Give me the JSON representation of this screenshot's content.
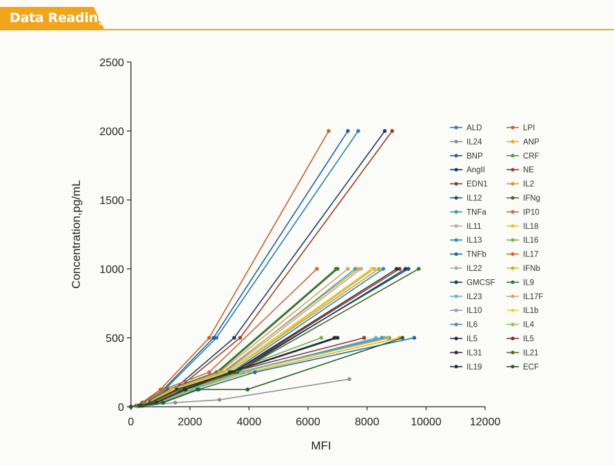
{
  "header": {
    "title": "Data Reading"
  },
  "colors": {
    "accent": "#f0a51c"
  },
  "chart_data": {
    "type": "line",
    "title": "",
    "xlabel": "MFI",
    "ylabel": "Concentration,pg/mL",
    "xlim": [
      0,
      12000
    ],
    "ylim": [
      0,
      2500
    ],
    "xticks": [
      0,
      2000,
      4000,
      6000,
      8000,
      10000,
      12000
    ],
    "yticks": [
      0,
      500,
      1000,
      1500,
      2000,
      2500
    ],
    "legend_position": "right",
    "series": [
      {
        "name": "ALD",
        "color": "#2b7fa8",
        "x": [
          0,
          180,
          420,
          1150,
          2900,
          7700
        ],
        "y": [
          0,
          8,
          30,
          125,
          500,
          2000
        ]
      },
      {
        "name": "LPI",
        "color": "#c8602a",
        "x": [
          0,
          170,
          380,
          1000,
          2650,
          6700
        ],
        "y": [
          0,
          8,
          30,
          125,
          500,
          2000
        ]
      },
      {
        "name": "IL24",
        "color": "#8f8f8f",
        "x": [
          0,
          250,
          700,
          1500,
          3000,
          7400
        ],
        "y": [
          0,
          3,
          12,
          30,
          50,
          200
        ]
      },
      {
        "name": "ANP",
        "color": "#e8b020",
        "x": [
          0,
          400,
          1000,
          2100,
          4000,
          9100
        ],
        "y": [
          0,
          8,
          30,
          125,
          250,
          500
        ]
      },
      {
        "name": "BNP",
        "color": "#1f5e9e",
        "x": [
          0,
          180,
          420,
          1100,
          2800,
          7350
        ],
        "y": [
          0,
          8,
          30,
          125,
          500,
          2000
        ]
      },
      {
        "name": "CRF",
        "color": "#4e9a3a",
        "x": [
          0,
          350,
          900,
          1900,
          3400,
          6900
        ],
        "y": [
          0,
          8,
          30,
          125,
          250,
          500
        ]
      },
      {
        "name": "AngII",
        "color": "#1b3d5c",
        "x": [
          0,
          220,
          520,
          1450,
          3500,
          8600
        ],
        "y": [
          0,
          8,
          30,
          125,
          500,
          2000
        ]
      },
      {
        "name": "NE",
        "color": "#a03c20",
        "x": [
          0,
          230,
          550,
          1550,
          3700,
          8850
        ],
        "y": [
          0,
          8,
          30,
          125,
          500,
          2000
        ]
      },
      {
        "name": "EDN1",
        "color": "#8b3a3a",
        "x": [
          0,
          300,
          800,
          1800,
          3400,
          7900
        ],
        "y": [
          0,
          8,
          30,
          125,
          250,
          500
        ]
      },
      {
        "name": "IL2",
        "color": "#c9a227",
        "x": [
          0,
          250,
          650,
          1500,
          3300,
          8400
        ],
        "y": [
          0,
          8,
          30,
          125,
          250,
          1000
        ]
      },
      {
        "name": "IL12",
        "color": "#1a4f7a",
        "x": [
          0,
          260,
          650,
          1550,
          3500,
          9400
        ],
        "y": [
          0,
          8,
          30,
          125,
          250,
          1000
        ]
      },
      {
        "name": "IFNg",
        "color": "#3d6b26",
        "x": [
          0,
          200,
          500,
          1250,
          2900,
          6950
        ],
        "y": [
          0,
          8,
          30,
          125,
          250,
          1000
        ]
      },
      {
        "name": "TNFa",
        "color": "#3a9ab0",
        "x": [
          0,
          230,
          600,
          1450,
          3150,
          7600
        ],
        "y": [
          0,
          8,
          30,
          125,
          250,
          1000
        ]
      },
      {
        "name": "IP10",
        "color": "#c46a48",
        "x": [
          0,
          180,
          450,
          1100,
          2650,
          6300
        ],
        "y": [
          0,
          8,
          30,
          125,
          250,
          1000
        ]
      },
      {
        "name": "IL11",
        "color": "#b0b0b0",
        "x": [
          0,
          230,
          600,
          1450,
          3200,
          7800
        ],
        "y": [
          0,
          8,
          30,
          125,
          250,
          1000
        ]
      },
      {
        "name": "IL18",
        "color": "#ecc830",
        "x": [
          0,
          240,
          620,
          1500,
          3300,
          8250
        ],
        "y": [
          0,
          8,
          30,
          125,
          250,
          1000
        ]
      },
      {
        "name": "IL13",
        "color": "#2e86b8",
        "x": [
          0,
          250,
          640,
          1520,
          3400,
          8550
        ],
        "y": [
          0,
          8,
          30,
          125,
          250,
          1000
        ]
      },
      {
        "name": "IL16",
        "color": "#7aab5a",
        "x": [
          0,
          350,
          900,
          1850,
          3300,
          6450
        ],
        "y": [
          0,
          8,
          30,
          125,
          250,
          500
        ]
      },
      {
        "name": "TNFb",
        "color": "#1c6ea0",
        "x": [
          0,
          420,
          1100,
          2300,
          4200,
          9600
        ],
        "y": [
          0,
          8,
          30,
          125,
          250,
          500
        ]
      },
      {
        "name": "IL17",
        "color": "#d9622b",
        "x": [
          0,
          300,
          780,
          1750,
          3700,
          8750
        ],
        "y": [
          0,
          8,
          30,
          125,
          250,
          500
        ]
      },
      {
        "name": "IL22",
        "color": "#a8a8a8",
        "x": [
          0,
          240,
          610,
          1480,
          3250,
          8200
        ],
        "y": [
          0,
          8,
          30,
          125,
          250,
          1000
        ]
      },
      {
        "name": "IFNb",
        "color": "#dca630",
        "x": [
          0,
          230,
          590,
          1420,
          3100,
          7700
        ],
        "y": [
          0,
          8,
          30,
          125,
          250,
          1000
        ]
      },
      {
        "name": "GMCSF",
        "color": "#163e5e",
        "x": [
          0,
          270,
          680,
          1600,
          3600,
          9300
        ],
        "y": [
          0,
          8,
          30,
          125,
          250,
          1000
        ]
      },
      {
        "name": "IL9",
        "color": "#2f7a3a",
        "x": [
          0,
          200,
          520,
          1270,
          2950,
          7000
        ],
        "y": [
          0,
          8,
          30,
          125,
          250,
          1000
        ]
      },
      {
        "name": "IL23",
        "color": "#6fb0d8",
        "x": [
          0,
          380,
          980,
          2050,
          3800,
          8300
        ],
        "y": [
          0,
          8,
          30,
          125,
          250,
          500
        ]
      },
      {
        "name": "IL17F",
        "color": "#d8a070",
        "x": [
          0,
          220,
          560,
          1350,
          3000,
          7350
        ],
        "y": [
          0,
          8,
          30,
          125,
          250,
          1000
        ]
      },
      {
        "name": "IL10",
        "color": "#9aa0a8",
        "x": [
          0,
          370,
          960,
          2000,
          3700,
          8600
        ],
        "y": [
          0,
          8,
          30,
          125,
          250,
          500
        ]
      },
      {
        "name": "IL1b",
        "color": "#f0d040",
        "x": [
          0,
          240,
          610,
          1460,
          3250,
          8150
        ],
        "y": [
          0,
          8,
          30,
          125,
          250,
          1000
        ]
      },
      {
        "name": "IL6",
        "color": "#4a90b0",
        "x": [
          0,
          360,
          940,
          1950,
          3650,
          8500
        ],
        "y": [
          0,
          8,
          30,
          125,
          250,
          500
        ]
      },
      {
        "name": "IL4",
        "color": "#8cbf6e",
        "x": [
          0,
          370,
          960,
          2000,
          3700,
          8700
        ],
        "y": [
          0,
          8,
          30,
          125,
          250,
          500
        ]
      },
      {
        "name": "IL5",
        "color": "#1c2d40",
        "x": [
          0,
          330,
          860,
          1850,
          3400,
          7000
        ],
        "y": [
          0,
          8,
          30,
          125,
          250,
          500
        ]
      },
      {
        "name": "IL5",
        "color": "#8a2b1e",
        "x": [
          0,
          260,
          660,
          1560,
          3500,
          9100
        ],
        "y": [
          0,
          8,
          30,
          125,
          250,
          1000
        ]
      },
      {
        "name": "IL31",
        "color": "#303030",
        "x": [
          0,
          260,
          650,
          1550,
          3450,
          9000
        ],
        "y": [
          0,
          8,
          30,
          125,
          250,
          1000
        ]
      },
      {
        "name": "IL21",
        "color": "#4a6a2a",
        "x": [
          0,
          280,
          700,
          1650,
          3600,
          9750
        ],
        "y": [
          0,
          8,
          30,
          125,
          250,
          1000
        ]
      },
      {
        "name": "IL19",
        "color": "#22303c",
        "x": [
          0,
          330,
          860,
          1820,
          3350,
          6900
        ],
        "y": [
          0,
          8,
          30,
          125,
          250,
          500
        ]
      },
      {
        "name": "ECF",
        "color": "#2a5a2a",
        "x": [
          0,
          410,
          1080,
          2250,
          3950,
          9200
        ],
        "y": [
          0,
          8,
          30,
          125,
          125,
          500
        ]
      }
    ]
  }
}
